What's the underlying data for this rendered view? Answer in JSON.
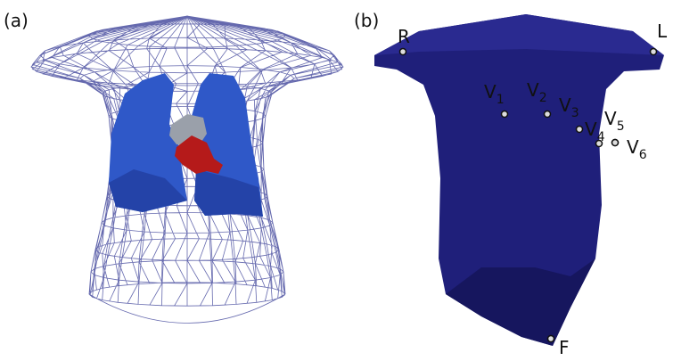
{
  "panels": [
    {
      "label": "(a)"
    },
    {
      "label": "(b)",
      "electrodes": [
        {
          "name": "R"
        },
        {
          "name": "L"
        },
        {
          "name": "V",
          "sub": "1"
        },
        {
          "name": "V",
          "sub": "2"
        },
        {
          "name": "V",
          "sub": "3"
        },
        {
          "name": "V",
          "sub": "4"
        },
        {
          "name": "V",
          "sub": "5"
        },
        {
          "name": "V",
          "sub": "6"
        },
        {
          "name": "F"
        }
      ]
    }
  ]
}
